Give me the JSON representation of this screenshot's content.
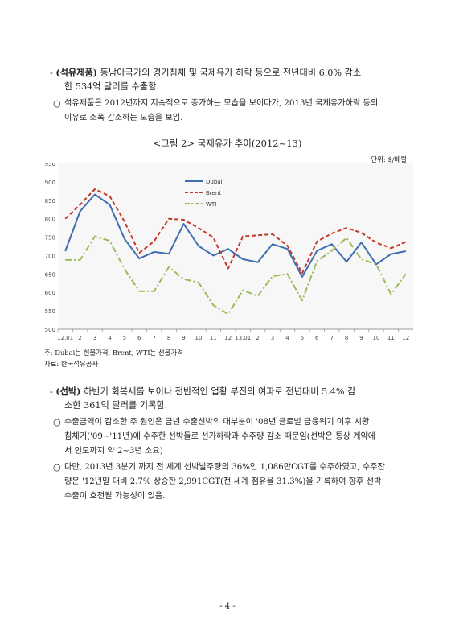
{
  "section1": {
    "dash": "-",
    "head": "(석유제품)",
    "line1_rest": " 동남아국가의 경기침체 및 국제유가 하락 등으로 전년대비 6.0% 감소",
    "line2": "한 534억 달러를 수출함.",
    "bullet": "○",
    "b1_line1": "석유제품은 2012년까지 지속적으로 증가하는 모습을 보이다가, 2013년 국제유가하락 등의",
    "b1_line2": "이유로 소폭 감소하는 모습을 보임."
  },
  "figure": {
    "title": "<그림 2> 국제유가 추이(2012~13)",
    "unit": "단위: $/배럴",
    "note": "주: Dubai는 현물가격, Brent, WTI는 선물가격",
    "source": "자료: 한국석유공사"
  },
  "chart_data": {
    "type": "line",
    "categories": [
      "12.01",
      "2",
      "3",
      "4",
      "5",
      "6",
      "7",
      "8",
      "9",
      "10",
      "11",
      "12",
      "13.01",
      "2",
      "3",
      "4",
      "5",
      "6",
      "7",
      "8",
      "9",
      "10",
      "11",
      "12"
    ],
    "ylim": [
      500,
      950
    ],
    "yticks": [
      "950",
      "900",
      "850",
      "800",
      "750",
      "700",
      "650",
      "600",
      "550",
      "500"
    ],
    "grid": false,
    "legend_position": "top-center",
    "series": [
      {
        "name": "Dubai",
        "color": "#3f6fb0",
        "style": "solid",
        "values": [
          712,
          820,
          866,
          838,
          745,
          692,
          710,
          705,
          786,
          726,
          700,
          718,
          690,
          682,
          731,
          718,
          642,
          713,
          731,
          683,
          736,
          676,
          704,
          712
        ]
      },
      {
        "name": "Brent",
        "color": "#c0392b",
        "style": "dashed",
        "values": [
          800,
          838,
          880,
          861,
          792,
          707,
          739,
          800,
          797,
          775,
          749,
          665,
          752,
          755,
          758,
          727,
          652,
          738,
          760,
          775,
          762,
          735,
          720,
          737
        ]
      },
      {
        "name": "WTI",
        "color": "#9bbb59",
        "style": "dashdot",
        "values": [
          688,
          688,
          752,
          740,
          663,
          603,
          603,
          669,
          636,
          627,
          565,
          541,
          606,
          590,
          644,
          650,
          578,
          685,
          713,
          748,
          690,
          676,
          595,
          650
        ]
      }
    ]
  },
  "section2": {
    "dash": "-",
    "head": "(선박)",
    "line1_rest": " 하반기 회복세를 보이나 전반적인 업황 부진의 여파로 전년대비 5.4% 감",
    "line2": "소한 361억 달러를 기록함.",
    "bullet": "○",
    "b1_line1": "수출금액이 감소한 주 원인은 금년 수출선박의 대부분이 '08년 글로벌 금융위기 이후 시황",
    "b1_line2": "침체기('09~'11년)에 수주한 선박들로 선가하락과 수주량 감소 때문임(선박은 통상 계약에",
    "b1_line3": "서 인도까지 약 2~3년 소요)",
    "b2_line1": "다만, 2013년 3분기 까지 전 세계 선박발주량의 36%인 1,086만CGT를 수주하였고, 수주잔",
    "b2_line2": "량은 '12년말 대비 2.7% 상승한 2,991CGT(전 세계 점유율 31.3%)을 기록하여 향후 선박",
    "b2_line3": "수출이 호전될 가능성이 있음."
  },
  "footer": {
    "page": "- 4 -"
  }
}
